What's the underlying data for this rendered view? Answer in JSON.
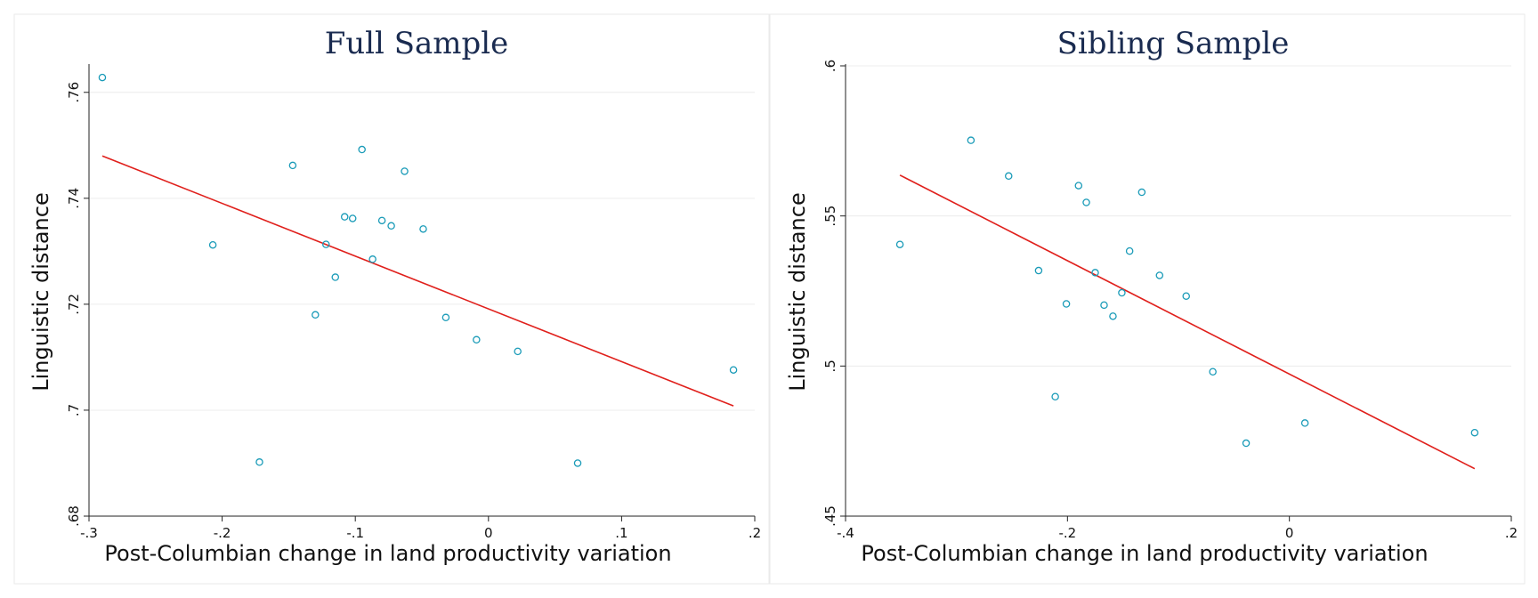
{
  "chart_data": [
    {
      "type": "scatter",
      "title": "Full Sample",
      "xlabel": "Post-Columbian change in land productivity variation",
      "ylabel": "Linguistic distance",
      "xlim": [
        -0.3,
        0.2
      ],
      "ylim": [
        0.68,
        0.765
      ],
      "xticks": [
        -0.3,
        -0.2,
        -0.1,
        0,
        0.1,
        0.2
      ],
      "xtick_labels": [
        "-.3",
        "-.2",
        "-.1",
        "0",
        ".1",
        ".2"
      ],
      "yticks": [
        0.68,
        0.7,
        0.72,
        0.74,
        0.76
      ],
      "ytick_labels": [
        ".68",
        ".7",
        ".72",
        ".74",
        ".76"
      ],
      "grid": true,
      "colors": {
        "points": "#1a9bb8",
        "fit": "#e0201c"
      },
      "points": [
        {
          "x": -0.29,
          "y": 0.7628
        },
        {
          "x": -0.207,
          "y": 0.7312
        },
        {
          "x": -0.172,
          "y": 0.6902
        },
        {
          "x": -0.147,
          "y": 0.7462
        },
        {
          "x": -0.13,
          "y": 0.718
        },
        {
          "x": -0.122,
          "y": 0.7313
        },
        {
          "x": -0.115,
          "y": 0.7251
        },
        {
          "x": -0.108,
          "y": 0.7365
        },
        {
          "x": -0.102,
          "y": 0.7362
        },
        {
          "x": -0.095,
          "y": 0.7492
        },
        {
          "x": -0.087,
          "y": 0.7285
        },
        {
          "x": -0.08,
          "y": 0.7358
        },
        {
          "x": -0.073,
          "y": 0.7348
        },
        {
          "x": -0.063,
          "y": 0.7451
        },
        {
          "x": -0.049,
          "y": 0.7342
        },
        {
          "x": -0.032,
          "y": 0.7175
        },
        {
          "x": -0.009,
          "y": 0.7133
        },
        {
          "x": 0.022,
          "y": 0.7111
        },
        {
          "x": 0.067,
          "y": 0.69
        },
        {
          "x": 0.184,
          "y": 0.7076
        }
      ],
      "fit_line": {
        "x": [
          -0.29,
          0.184
        ],
        "y": [
          0.748,
          0.7008
        ]
      }
    },
    {
      "type": "scatter",
      "title": "Sibling Sample",
      "xlabel": "Post-Columbian change in land productivity variation",
      "ylabel": "Linguistic distance",
      "xlim": [
        -0.4,
        0.2
      ],
      "ylim": [
        0.45,
        0.6
      ],
      "xticks": [
        -0.4,
        -0.2,
        0,
        0.2
      ],
      "xtick_labels": [
        "-.4",
        "-.2",
        "0",
        ".2"
      ],
      "yticks": [
        0.45,
        0.5,
        0.55,
        0.6
      ],
      "ytick_labels": [
        ".45",
        ".5",
        ".55",
        ".6"
      ],
      "grid": true,
      "colors": {
        "points": "#1a9bb8",
        "fit": "#e0201c"
      },
      "points": [
        {
          "x": -0.351,
          "y": 0.5405
        },
        {
          "x": -0.287,
          "y": 0.5752
        },
        {
          "x": -0.253,
          "y": 0.5633
        },
        {
          "x": -0.226,
          "y": 0.5318
        },
        {
          "x": -0.211,
          "y": 0.4898
        },
        {
          "x": -0.201,
          "y": 0.5207
        },
        {
          "x": -0.19,
          "y": 0.5601
        },
        {
          "x": -0.183,
          "y": 0.5545
        },
        {
          "x": -0.175,
          "y": 0.5311
        },
        {
          "x": -0.167,
          "y": 0.5203
        },
        {
          "x": -0.159,
          "y": 0.5166
        },
        {
          "x": -0.151,
          "y": 0.5244
        },
        {
          "x": -0.144,
          "y": 0.5383
        },
        {
          "x": -0.133,
          "y": 0.5579
        },
        {
          "x": -0.117,
          "y": 0.5302
        },
        {
          "x": -0.093,
          "y": 0.5233
        },
        {
          "x": -0.069,
          "y": 0.4981
        },
        {
          "x": -0.039,
          "y": 0.4743
        },
        {
          "x": 0.014,
          "y": 0.481
        },
        {
          "x": 0.167,
          "y": 0.4778
        }
      ],
      "fit_line": {
        "x": [
          -0.351,
          0.167
        ],
        "y": [
          0.5636,
          0.4658
        ]
      }
    }
  ]
}
